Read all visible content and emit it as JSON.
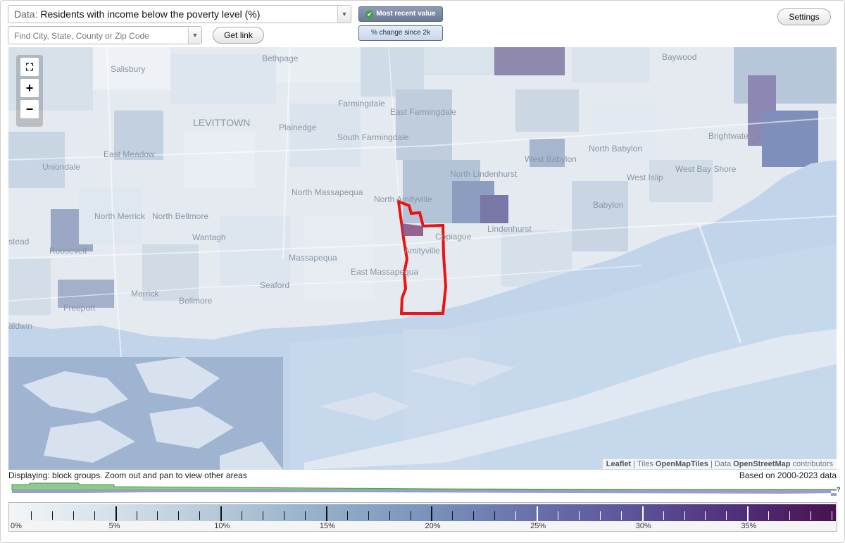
{
  "toolbar": {
    "data_prefix": "Data:",
    "data_value": "Residents with income below the poverty level (%)",
    "find_placeholder": "Find City, State, County or Zip Code",
    "get_link_label": "Get link",
    "most_recent_label": "Most recent value",
    "change_label": "% change since 2k",
    "settings_label": "Settings"
  },
  "map": {
    "zoom_in": "+",
    "zoom_out": "−",
    "fullscreen_icon": "fullscreen-icon",
    "places": [
      "Bethpage",
      "Baywood",
      "Salisbury",
      "Farmingdale",
      "East Farmingdale",
      "LEVITTOWN",
      "Plainedge",
      "South Farmingdale",
      "Brightwaters",
      "East Meadow",
      "Uniondale",
      "North Babylon",
      "West Babylon",
      "West Bay Shore",
      "West Islip",
      "North Lindenhurst",
      "North Massapequa",
      "North Amityville",
      "Babylon",
      "North Merrick",
      "North Bellmore",
      "Wantagh",
      "Copiague",
      "Lindenhurst",
      "stead",
      "Roosevelt",
      "Massapequa",
      "Amityville",
      "East Massapequa",
      "Seaford",
      "Merrick",
      "Bellmore",
      "Freeport",
      "aldwin"
    ],
    "attribution": {
      "leaflet": "Leaflet",
      "tiles_prefix": "| Tiles",
      "tiles": "OpenMapTiles",
      "data_prefix": "| Data",
      "osm": "OpenStreetMap",
      "contributors": "contributors"
    },
    "highlight_color": "#ee1111"
  },
  "footer": {
    "displaying": "Displaying: block groups. Zoom out and pan to view other areas",
    "based_on": "Based on 2000-2023 data",
    "histogram_unknown": "?"
  },
  "legend": {
    "ticks": [
      "0%",
      "5%",
      "10%",
      "15%",
      "20%",
      "25%",
      "30%",
      "35%"
    ],
    "max_percent": 39.2,
    "colors": [
      "#f3f6f9",
      "#94afc9",
      "#6a74ac",
      "#48124e"
    ]
  }
}
